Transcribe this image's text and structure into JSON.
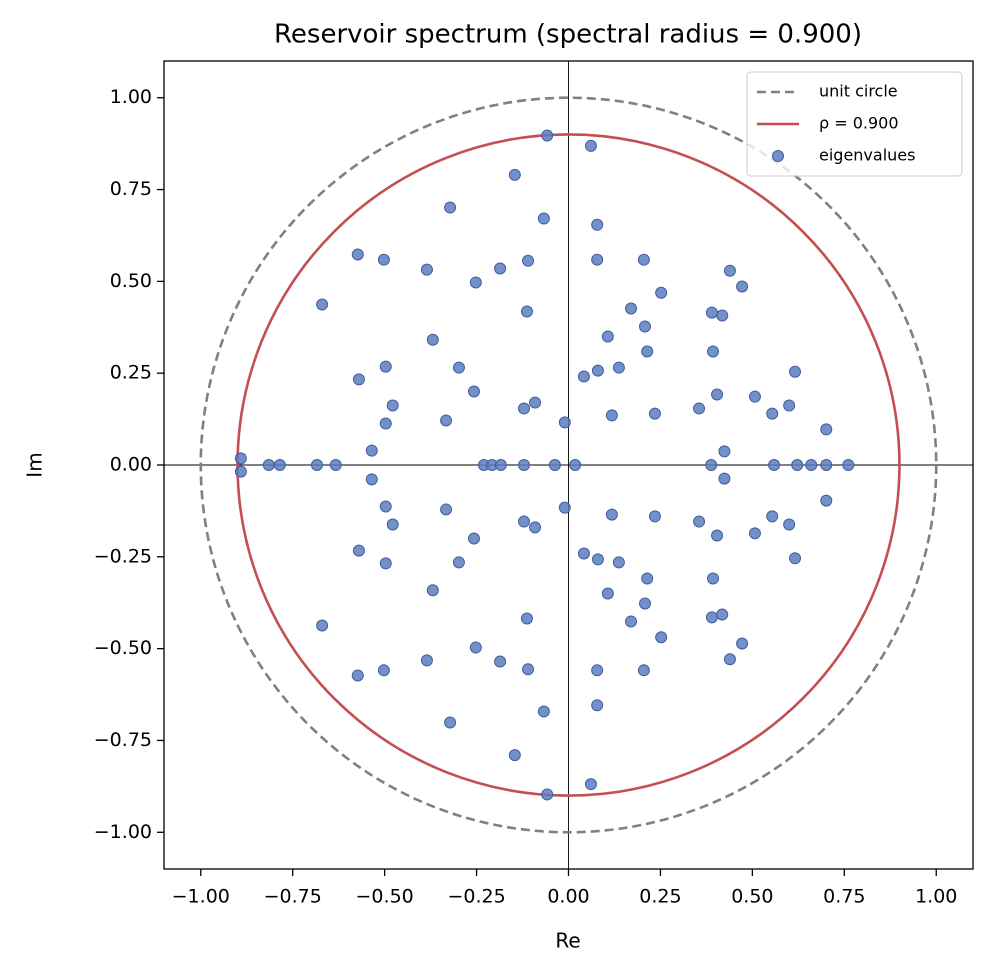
{
  "chart_data": {
    "type": "scatter",
    "title": "Reservoir spectrum (spectral radius = 0.900)",
    "x_label": "Re",
    "y_label": "Im",
    "xlim": [
      -1.1,
      1.1
    ],
    "ylim": [
      -1.1,
      1.1
    ],
    "xticks": [
      {
        "value": -1,
        "label": "−1.00"
      },
      {
        "value": -0.75,
        "label": "−0.75"
      },
      {
        "value": -0.5,
        "label": "−0.50"
      },
      {
        "value": -0.25,
        "label": "−0.25"
      },
      {
        "value": 0,
        "label": "0.00"
      },
      {
        "value": 0.25,
        "label": "0.25"
      },
      {
        "value": 0.5,
        "label": "0.50"
      },
      {
        "value": 0.75,
        "label": "0.75"
      },
      {
        "value": 1,
        "label": "1.00"
      }
    ],
    "yticks": [
      {
        "value": -1,
        "label": "−1.00"
      },
      {
        "value": -0.75,
        "label": "−0.75"
      },
      {
        "value": -0.5,
        "label": "−0.50"
      },
      {
        "value": -0.25,
        "label": "−0.25"
      },
      {
        "value": 0,
        "label": "0.00"
      },
      {
        "value": 0.25,
        "label": "0.25"
      },
      {
        "value": 0.5,
        "label": "0.50"
      },
      {
        "value": 0.75,
        "label": "0.75"
      },
      {
        "value": 1,
        "label": "1.00"
      }
    ],
    "legend_position": "upper right",
    "circles": [
      {
        "name": "unit circle",
        "radius": 1,
        "color": "#808080",
        "dashed": true
      },
      {
        "name": "ρ = 0.900",
        "radius": 0.9,
        "color": "#c44e52",
        "dashed": false
      }
    ],
    "series": [
      {
        "name": "eigenvalues",
        "color": "#5a7dbf",
        "x": [
          -0.058,
          0.061,
          -0.146,
          -0.322,
          -0.067,
          0.078,
          -0.573,
          -0.502,
          -0.385,
          -0.186,
          -0.11,
          0.078,
          0.205,
          0.439,
          -0.252,
          0.472,
          -0.67,
          0.252,
          -0.113,
          0.17,
          0.208,
          0.39,
          0.418,
          0.107,
          -0.369,
          0.214,
          0.393,
          -0.497,
          -0.298,
          0.08,
          0.137,
          0.042,
          0.616,
          -0.57,
          -0.257,
          0.404,
          0.507,
          -0.478,
          -0.091,
          -0.121,
          0.355,
          0.554,
          0.6,
          0.118,
          0.235,
          -0.333,
          -0.497,
          -0.01,
          0.701,
          -0.535,
          0.424,
          -0.891,
          -0.815,
          -0.785,
          -0.684,
          -0.633,
          -0.23,
          -0.208,
          -0.184,
          -0.121,
          -0.037,
          0.018,
          0.388,
          0.559,
          0.622,
          0.66,
          0.701,
          0.761,
          -0.058,
          0.061,
          -0.146,
          -0.322,
          -0.067,
          0.078,
          -0.573,
          -0.502,
          -0.385,
          -0.186,
          -0.11,
          0.078,
          0.205,
          0.439,
          -0.252,
          0.472,
          -0.67,
          0.252,
          -0.113,
          0.17,
          0.208,
          0.39,
          0.418,
          0.107,
          -0.369,
          0.214,
          0.393,
          -0.497,
          -0.298,
          0.08,
          0.137,
          0.042,
          0.616,
          -0.57,
          -0.257,
          0.404,
          0.507,
          -0.478,
          -0.091,
          -0.121,
          0.355,
          0.554,
          0.6,
          0.118,
          0.235,
          -0.333,
          -0.497,
          -0.01,
          0.701,
          -0.535,
          0.424,
          -0.891
        ],
        "values": [
          0.897,
          0.869,
          0.79,
          0.701,
          0.671,
          0.654,
          0.573,
          0.559,
          0.532,
          0.535,
          0.556,
          0.559,
          0.559,
          0.529,
          0.497,
          0.486,
          0.437,
          0.469,
          0.418,
          0.426,
          0.377,
          0.415,
          0.407,
          0.35,
          0.341,
          0.309,
          0.309,
          0.268,
          0.265,
          0.257,
          0.265,
          0.241,
          0.254,
          0.233,
          0.2,
          0.192,
          0.186,
          0.162,
          0.17,
          0.154,
          0.154,
          0.14,
          0.162,
          0.135,
          0.14,
          0.121,
          0.113,
          0.116,
          0.097,
          0.039,
          0.037,
          0.018,
          0,
          0,
          0,
          0,
          0,
          0,
          0,
          0,
          0,
          0,
          0,
          0,
          0,
          0,
          0,
          0,
          -0.897,
          -0.869,
          -0.79,
          -0.701,
          -0.671,
          -0.654,
          -0.573,
          -0.559,
          -0.532,
          -0.535,
          -0.556,
          -0.559,
          -0.559,
          -0.529,
          -0.497,
          -0.486,
          -0.437,
          -0.469,
          -0.418,
          -0.426,
          -0.377,
          -0.415,
          -0.407,
          -0.35,
          -0.341,
          -0.309,
          -0.309,
          -0.268,
          -0.265,
          -0.257,
          -0.265,
          -0.241,
          -0.254,
          -0.233,
          -0.2,
          -0.192,
          -0.186,
          -0.162,
          -0.17,
          -0.154,
          -0.154,
          -0.14,
          -0.162,
          -0.135,
          -0.14,
          -0.121,
          -0.113,
          -0.116,
          -0.097,
          -0.039,
          -0.037,
          -0.018
        ]
      }
    ]
  }
}
